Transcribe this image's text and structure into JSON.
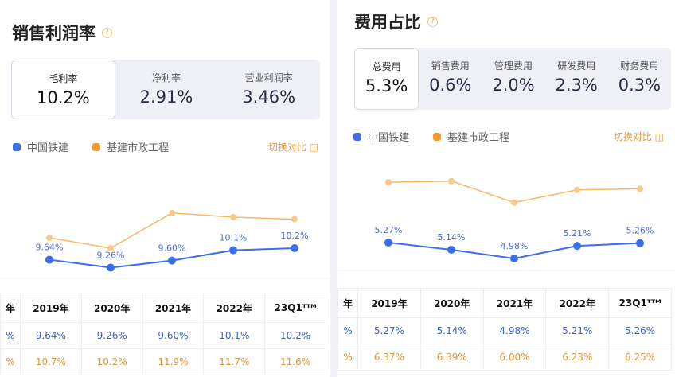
{
  "colors": {
    "series1": "#3a6fe8",
    "series2": "#f7b868",
    "accent": "#e89a3c"
  },
  "legend": {
    "series1": "中国铁建",
    "series2": "基建市政工程"
  },
  "switch_label": "切换对比 ◫",
  "left": {
    "title": "销售利润率",
    "tabs": [
      {
        "label": "毛利率",
        "value": "10.2%",
        "active": true
      },
      {
        "label": "净利率",
        "value": "2.91%"
      },
      {
        "label": "营业利润率",
        "value": "3.46%"
      }
    ],
    "table": {
      "headers": [
        "年",
        "2019年",
        "2020年",
        "2021年",
        "2022年",
        "23Q1ᵀᵀᴹ"
      ],
      "row1": [
        "%",
        "9.64%",
        "9.26%",
        "9.60%",
        "10.1%",
        "10.2%"
      ],
      "row2": [
        "%",
        "10.7%",
        "10.2%",
        "11.9%",
        "11.7%",
        "11.6%"
      ]
    }
  },
  "right": {
    "title": "费用占比",
    "tabs": [
      {
        "label": "总费用",
        "value": "5.3%",
        "active": true
      },
      {
        "label": "销售费用",
        "value": "0.6%"
      },
      {
        "label": "管理费用",
        "value": "2.0%"
      },
      {
        "label": "研发费用",
        "value": "2.3%"
      },
      {
        "label": "财务费用",
        "value": "0.3%"
      }
    ],
    "table": {
      "headers": [
        "年",
        "2019年",
        "2020年",
        "2021年",
        "2022年",
        "23Q1ᵀᵀᴹ"
      ],
      "row1": [
        "%",
        "5.27%",
        "5.14%",
        "4.98%",
        "5.21%",
        "5.26%"
      ],
      "row2": [
        "%",
        "6.37%",
        "6.39%",
        "6.00%",
        "6.23%",
        "6.25%"
      ]
    }
  },
  "chart_data": [
    {
      "type": "line",
      "categories": [
        "2019年",
        "2020年",
        "2021年",
        "2022年",
        "23Q1TTM"
      ],
      "series": [
        {
          "name": "中国铁建",
          "values": [
            9.64,
            9.26,
            9.6,
            10.1,
            10.2
          ],
          "labels": [
            "9.64%",
            "9.26%",
            "9.60%",
            "10.1%",
            "10.2%"
          ]
        },
        {
          "name": "基建市政工程",
          "values": [
            10.7,
            10.2,
            11.9,
            11.7,
            11.6
          ]
        }
      ]
    },
    {
      "type": "line",
      "categories": [
        "2019年",
        "2020年",
        "2021年",
        "2022年",
        "23Q1TTM"
      ],
      "series": [
        {
          "name": "中国铁建",
          "values": [
            5.27,
            5.14,
            4.98,
            5.21,
            5.26
          ],
          "labels": [
            "5.27%",
            "5.14%",
            "4.98%",
            "5.21%",
            "5.26%"
          ]
        },
        {
          "name": "基建市政工程",
          "values": [
            6.37,
            6.39,
            6.0,
            6.23,
            6.25
          ]
        }
      ]
    }
  ]
}
